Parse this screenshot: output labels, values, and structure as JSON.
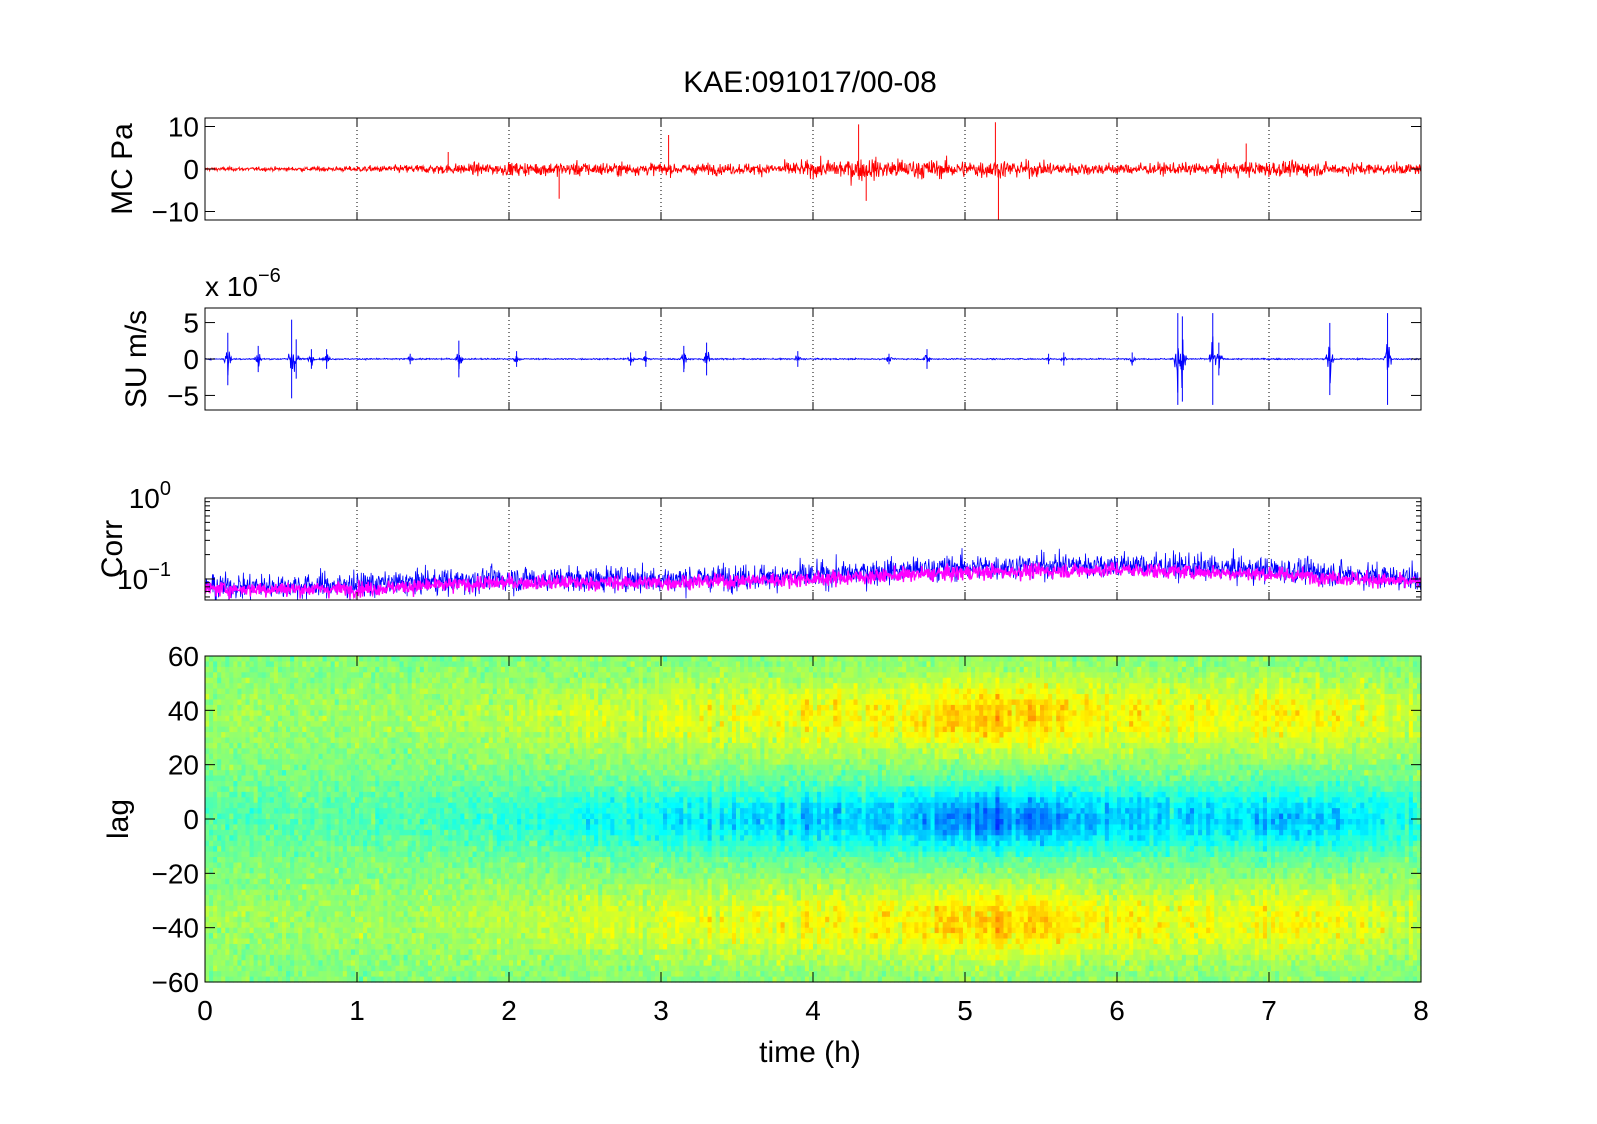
{
  "figure": {
    "title": "KAE:091017/00-08"
  },
  "chart_data": [
    {
      "id": "mc",
      "type": "line",
      "ylabel": "MC Pa",
      "ylim": [
        -12,
        12
      ],
      "yticks": [
        10,
        0,
        -10
      ],
      "ytick_labels": [
        "10",
        "0",
        "−10"
      ],
      "xlim": [
        0,
        8
      ],
      "grid": "x-dotted",
      "color": "#ff0000",
      "envelope": {
        "x": [
          0,
          0.5,
          1,
          1.5,
          2,
          2.5,
          3,
          3.5,
          4,
          4.25,
          4.5,
          5,
          5.25,
          5.5,
          6,
          6.5,
          7,
          7.5,
          8
        ],
        "amplitude": [
          0.8,
          0.9,
          1.2,
          2.2,
          2.8,
          3.2,
          2.6,
          2.4,
          3.5,
          5.0,
          4.6,
          3.8,
          4.2,
          3.2,
          2.6,
          2.6,
          3.6,
          2.8,
          2.2
        ]
      },
      "spikes": [
        {
          "x": 4.3,
          "y": 10.5
        },
        {
          "x": 4.35,
          "y": -7.5
        },
        {
          "x": 5.2,
          "y": 11
        },
        {
          "x": 5.22,
          "y": -12
        },
        {
          "x": 2.33,
          "y": -7
        },
        {
          "x": 3.05,
          "y": 8
        },
        {
          "x": 6.85,
          "y": 6
        },
        {
          "x": 1.6,
          "y": 4
        }
      ]
    },
    {
      "id": "su",
      "type": "line",
      "ylabel": "SU m/s",
      "scale_label": "x 10",
      "scale_exponent": "−6",
      "ylim": [
        -7,
        7
      ],
      "yticks": [
        5,
        0,
        -5
      ],
      "ytick_labels": [
        "5",
        "0",
        "−5"
      ],
      "xlim": [
        0,
        8
      ],
      "grid": "x-dotted",
      "color": "#0000ff",
      "baseline_noise": 0.15,
      "bursts": [
        {
          "x": 0.15,
          "amp": 4.0
        },
        {
          "x": 0.35,
          "amp": 2.0
        },
        {
          "x": 0.57,
          "amp": 6.0
        },
        {
          "x": 0.6,
          "amp": 3.0
        },
        {
          "x": 0.7,
          "amp": 1.5
        },
        {
          "x": 0.8,
          "amp": 1.5
        },
        {
          "x": 1.35,
          "amp": 0.8
        },
        {
          "x": 1.67,
          "amp": 2.8
        },
        {
          "x": 2.05,
          "amp": 1.2
        },
        {
          "x": 2.8,
          "amp": 1.0
        },
        {
          "x": 2.9,
          "amp": 1.2
        },
        {
          "x": 3.15,
          "amp": 2.0
        },
        {
          "x": 3.3,
          "amp": 2.5
        },
        {
          "x": 3.9,
          "amp": 1.2
        },
        {
          "x": 4.5,
          "amp": 0.8
        },
        {
          "x": 4.75,
          "amp": 1.5
        },
        {
          "x": 5.55,
          "amp": 0.8
        },
        {
          "x": 5.65,
          "amp": 1.0
        },
        {
          "x": 6.1,
          "amp": 1.0
        },
        {
          "x": 6.4,
          "amp": 7.0
        },
        {
          "x": 6.43,
          "amp": 6.5
        },
        {
          "x": 6.63,
          "amp": 7.0
        },
        {
          "x": 6.67,
          "amp": 2.5
        },
        {
          "x": 7.4,
          "amp": 5.5
        },
        {
          "x": 7.78,
          "amp": 7.0
        }
      ]
    },
    {
      "id": "corr",
      "type": "line",
      "ylabel": "Corr",
      "yscale": "log",
      "ylim": [
        0.055,
        1.0
      ],
      "yticks": [
        1,
        0.1
      ],
      "ytick_base": [
        "10",
        "10"
      ],
      "ytick_exponents": [
        "0",
        "−1"
      ],
      "xlim": [
        0,
        8
      ],
      "grid": "x-dotted",
      "series": [
        {
          "name": "",
          "color": "#0000ff",
          "trend": {
            "x": [
              0,
              1,
              2,
              3,
              4,
              5,
              6,
              7,
              8
            ],
            "y": [
              0.08,
              0.085,
              0.1,
              0.1,
              0.11,
              0.14,
              0.15,
              0.13,
              0.1
            ]
          }
        },
        {
          "name": "",
          "color": "#ff00ff",
          "trend": {
            "x": [
              0,
              1,
              2,
              3,
              4,
              5,
              6,
              7,
              8
            ],
            "y": [
              0.075,
              0.075,
              0.09,
              0.09,
              0.1,
              0.12,
              0.13,
              0.115,
              0.09
            ]
          }
        }
      ]
    },
    {
      "id": "lag",
      "type": "heatmap",
      "ylabel": "lag",
      "xlabel": "time (h)",
      "ylim": [
        -60,
        60
      ],
      "yticks": [
        60,
        40,
        20,
        0,
        -20,
        -40,
        -60
      ],
      "ytick_labels": [
        "60",
        "40",
        "20",
        "0",
        "−20",
        "−40",
        "−60"
      ],
      "xlim": [
        0,
        8
      ],
      "xticks": [
        0,
        1,
        2,
        3,
        4,
        5,
        6,
        7,
        8
      ],
      "xtick_labels": [
        "0",
        "1",
        "2",
        "3",
        "4",
        "5",
        "6",
        "7",
        "8"
      ],
      "colormap": "jet",
      "description_values": {
        "center_lag_low": 0,
        "side_lobes_high": [
          35,
          -35
        ],
        "peak_time_h": 5.2
      }
    }
  ]
}
